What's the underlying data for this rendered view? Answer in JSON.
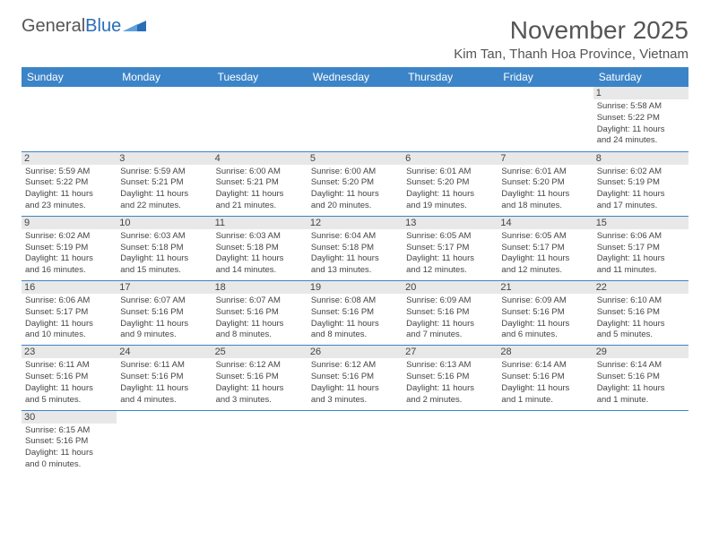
{
  "brand": {
    "name1": "General",
    "name2": "Blue"
  },
  "title": "November 2025",
  "location": "Kim Tan, Thanh Hoa Province, Vietnam",
  "colors": {
    "header_bg": "#3c84c8",
    "header_fg": "#ffffff",
    "daynum_bg": "#e8e8e8",
    "border": "#3c84c8",
    "text": "#444444",
    "title": "#555555"
  },
  "weekdays": [
    "Sunday",
    "Monday",
    "Tuesday",
    "Wednesday",
    "Thursday",
    "Friday",
    "Saturday"
  ],
  "first_weekday_index": 6,
  "days": [
    {
      "n": 1,
      "sunrise": "5:58 AM",
      "sunset": "5:22 PM",
      "dh": 11,
      "dm": 24
    },
    {
      "n": 2,
      "sunrise": "5:59 AM",
      "sunset": "5:22 PM",
      "dh": 11,
      "dm": 23
    },
    {
      "n": 3,
      "sunrise": "5:59 AM",
      "sunset": "5:21 PM",
      "dh": 11,
      "dm": 22
    },
    {
      "n": 4,
      "sunrise": "6:00 AM",
      "sunset": "5:21 PM",
      "dh": 11,
      "dm": 21
    },
    {
      "n": 5,
      "sunrise": "6:00 AM",
      "sunset": "5:20 PM",
      "dh": 11,
      "dm": 20
    },
    {
      "n": 6,
      "sunrise": "6:01 AM",
      "sunset": "5:20 PM",
      "dh": 11,
      "dm": 19
    },
    {
      "n": 7,
      "sunrise": "6:01 AM",
      "sunset": "5:20 PM",
      "dh": 11,
      "dm": 18
    },
    {
      "n": 8,
      "sunrise": "6:02 AM",
      "sunset": "5:19 PM",
      "dh": 11,
      "dm": 17
    },
    {
      "n": 9,
      "sunrise": "6:02 AM",
      "sunset": "5:19 PM",
      "dh": 11,
      "dm": 16
    },
    {
      "n": 10,
      "sunrise": "6:03 AM",
      "sunset": "5:18 PM",
      "dh": 11,
      "dm": 15
    },
    {
      "n": 11,
      "sunrise": "6:03 AM",
      "sunset": "5:18 PM",
      "dh": 11,
      "dm": 14
    },
    {
      "n": 12,
      "sunrise": "6:04 AM",
      "sunset": "5:18 PM",
      "dh": 11,
      "dm": 13
    },
    {
      "n": 13,
      "sunrise": "6:05 AM",
      "sunset": "5:17 PM",
      "dh": 11,
      "dm": 12
    },
    {
      "n": 14,
      "sunrise": "6:05 AM",
      "sunset": "5:17 PM",
      "dh": 11,
      "dm": 12
    },
    {
      "n": 15,
      "sunrise": "6:06 AM",
      "sunset": "5:17 PM",
      "dh": 11,
      "dm": 11
    },
    {
      "n": 16,
      "sunrise": "6:06 AM",
      "sunset": "5:17 PM",
      "dh": 11,
      "dm": 10
    },
    {
      "n": 17,
      "sunrise": "6:07 AM",
      "sunset": "5:16 PM",
      "dh": 11,
      "dm": 9
    },
    {
      "n": 18,
      "sunrise": "6:07 AM",
      "sunset": "5:16 PM",
      "dh": 11,
      "dm": 8
    },
    {
      "n": 19,
      "sunrise": "6:08 AM",
      "sunset": "5:16 PM",
      "dh": 11,
      "dm": 8
    },
    {
      "n": 20,
      "sunrise": "6:09 AM",
      "sunset": "5:16 PM",
      "dh": 11,
      "dm": 7
    },
    {
      "n": 21,
      "sunrise": "6:09 AM",
      "sunset": "5:16 PM",
      "dh": 11,
      "dm": 6
    },
    {
      "n": 22,
      "sunrise": "6:10 AM",
      "sunset": "5:16 PM",
      "dh": 11,
      "dm": 5
    },
    {
      "n": 23,
      "sunrise": "6:11 AM",
      "sunset": "5:16 PM",
      "dh": 11,
      "dm": 5
    },
    {
      "n": 24,
      "sunrise": "6:11 AM",
      "sunset": "5:16 PM",
      "dh": 11,
      "dm": 4
    },
    {
      "n": 25,
      "sunrise": "6:12 AM",
      "sunset": "5:16 PM",
      "dh": 11,
      "dm": 3
    },
    {
      "n": 26,
      "sunrise": "6:12 AM",
      "sunset": "5:16 PM",
      "dh": 11,
      "dm": 3
    },
    {
      "n": 27,
      "sunrise": "6:13 AM",
      "sunset": "5:16 PM",
      "dh": 11,
      "dm": 2
    },
    {
      "n": 28,
      "sunrise": "6:14 AM",
      "sunset": "5:16 PM",
      "dh": 11,
      "dm": 1
    },
    {
      "n": 29,
      "sunrise": "6:14 AM",
      "sunset": "5:16 PM",
      "dh": 11,
      "dm": 1
    },
    {
      "n": 30,
      "sunrise": "6:15 AM",
      "sunset": "5:16 PM",
      "dh": 11,
      "dm": 0
    }
  ],
  "labels": {
    "sunrise": "Sunrise:",
    "sunset": "Sunset:",
    "daylight": "Daylight:",
    "hours": "hours",
    "and": "and",
    "minutes_singular": "minute.",
    "minutes_plural": "minutes."
  }
}
